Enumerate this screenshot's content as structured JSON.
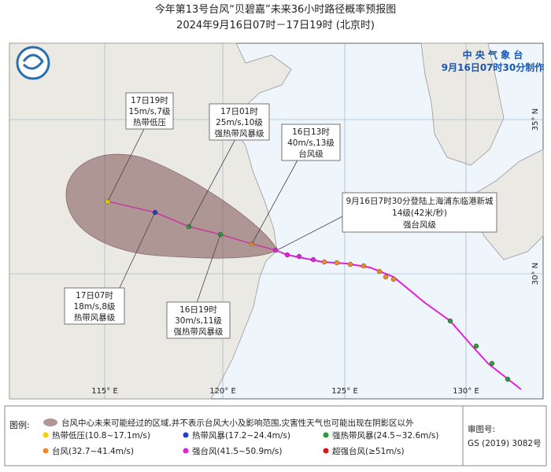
{
  "header": {
    "title": "今年第13号台风“贝碧嘉”未来36小时路径概率预报图",
    "subtitle": "2024年9月16日07时－17日19时 (北京时)"
  },
  "agency": {
    "name": "中 央 气 象 台",
    "issued": "9月16日07时30分制作"
  },
  "callouts": [
    {
      "time": "17日19时",
      "wind": "15m/s,7级",
      "level": "热带低压"
    },
    {
      "time": "17日01时",
      "wind": "25m/s,10级",
      "level": "强热带风暴级"
    },
    {
      "time": "16日13时",
      "wind": "40m/s,13级",
      "level": "台风级"
    },
    {
      "time": "17日07时",
      "wind": "18m/s,8级",
      "level": "热带风暴级"
    },
    {
      "time": "16日19时",
      "wind": "30m/s,11级",
      "level": "强热带风暴级"
    }
  ],
  "landfall": {
    "text": "9月16日7时30分登陆上海浦东临港新城",
    "intensity": "14级(42米/秒)",
    "level": "强台风级"
  },
  "axes": {
    "lon": [
      "115° E",
      "120° E",
      "125° E",
      "130° E"
    ],
    "lat": [
      "35° N",
      "30° N"
    ]
  },
  "legend": {
    "label": "图例:",
    "cone": "台风中心未来可能经过的区域,并不表示台风大小及影响范围,灾害性天气也可能出现在阴影区以外",
    "items": [
      "热带低压(10.8~17.1m/s)",
      "热带风暴(17.2~24.4m/s)",
      "强热带风暴(24.5~32.6m/s)",
      "台风(32.7~41.4m/s)",
      "强台风(41.5~50.9m/s)",
      "超强台风(≥51m/s)"
    ]
  },
  "approval": {
    "label": "审图号:",
    "number": "GS (2019) 3082号"
  }
}
